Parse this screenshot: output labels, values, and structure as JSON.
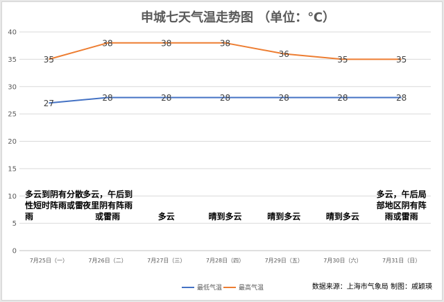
{
  "chart_data": {
    "type": "line",
    "title": "申城七天气温走势图 （单位：℃）",
    "categories": [
      "7月25日（一）",
      "7月26日（二）",
      "7月27日（三）",
      "7月28日（四）",
      "7月29日（五）",
      "7月30日（六）",
      "7月31日（日）"
    ],
    "series": [
      {
        "name": "最低气温",
        "color": "#4472c4",
        "values": [
          27,
          28,
          28,
          28,
          28,
          28,
          28
        ]
      },
      {
        "name": "最高气温",
        "color": "#ed7d31",
        "values": [
          35,
          38,
          38,
          38,
          36,
          35,
          35
        ]
      }
    ],
    "weather": [
      [
        "多云到阴有分散",
        "性短时阵雨或雷",
        "雨"
      ],
      [
        "多云，午后到",
        "夜里阴有阵雨",
        "或雷雨"
      ],
      [
        "多云"
      ],
      [
        "晴到多云"
      ],
      [
        "晴到多云"
      ],
      [
        "晴到多云"
      ],
      [
        "多云，午后局",
        "部地区阴有阵",
        "雨或雷雨"
      ]
    ],
    "ylim": [
      0,
      40
    ],
    "yticks": [
      0,
      5,
      10,
      15,
      20,
      25,
      30,
      35,
      40
    ],
    "grid": true,
    "legend_position": "bottom-center",
    "xlabel": "",
    "ylabel": ""
  },
  "footer": "数据来源：上海市气象局   制图：戚颖瑛"
}
